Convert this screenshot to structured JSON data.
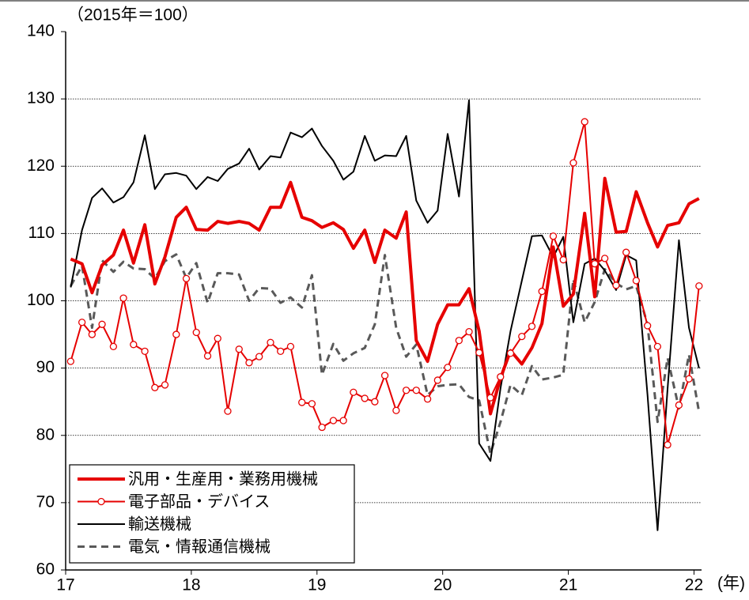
{
  "chart_data": {
    "type": "line",
    "y_unit_label": "（2015年＝100）",
    "x_unit_label": "(年)",
    "x": [
      17.04,
      17.13,
      17.21,
      17.29,
      17.38,
      17.46,
      17.54,
      17.63,
      17.71,
      17.79,
      17.88,
      17.96,
      18.04,
      18.13,
      18.21,
      18.29,
      18.38,
      18.46,
      18.54,
      18.63,
      18.71,
      18.79,
      18.88,
      18.96,
      19.04,
      19.13,
      19.21,
      19.29,
      19.38,
      19.46,
      19.54,
      19.63,
      19.71,
      19.79,
      19.88,
      19.96,
      20.04,
      20.13,
      20.21,
      20.29,
      20.38,
      20.46,
      20.54,
      20.63,
      20.71,
      20.79,
      20.88,
      20.96,
      21.04,
      21.13,
      21.21,
      21.29,
      21.38,
      21.46,
      21.54,
      21.63,
      21.71,
      21.79,
      21.88,
      21.96,
      22.04
    ],
    "series": [
      {
        "name": "汎用・生産用・業務用機械",
        "color": "#e60000",
        "width": 4,
        "dash": false,
        "markers": false,
        "values": [
          106.2,
          105.5,
          101.2,
          105.3,
          106.8,
          110.5,
          105.6,
          111.3,
          102.5,
          106.5,
          112.4,
          113.9,
          110.6,
          110.5,
          111.8,
          111.5,
          111.8,
          111.5,
          110.5,
          113.9,
          113.9,
          117.6,
          112.4,
          111.9,
          110.9,
          111.6,
          110.6,
          107.8,
          110.5,
          105.7,
          110.5,
          109.3,
          113.2,
          94.1,
          91.0,
          96.5,
          99.4,
          99.4,
          101.8,
          95.5,
          83.2,
          88.5,
          92.6,
          90.6,
          93.0,
          96.6,
          108.0,
          99.2,
          101.0,
          113.0,
          100.6,
          118.2,
          110.2,
          110.3,
          116.2,
          111.6,
          108.0,
          111.2,
          111.6,
          114.4,
          115.2
        ]
      },
      {
        "name": "電子部品・デバイス",
        "color": "#e60000",
        "width": 2,
        "dash": false,
        "markers": true,
        "values": [
          91,
          96.8,
          95,
          96.5,
          93.2,
          100.4,
          93.5,
          92.5,
          87.1,
          87.5,
          95,
          103.3,
          95.3,
          91.8,
          94.4,
          83.6,
          92.8,
          90.8,
          91.7,
          93.8,
          92.5,
          93.2,
          84.9,
          84.7,
          81.2,
          82.2,
          82.2,
          86.4,
          85.5,
          85,
          88.9,
          83.7,
          86.7,
          86.7,
          85.4,
          88.2,
          90.1,
          94.1,
          95.4,
          92.3,
          85.6,
          88.7,
          92.2,
          94.7,
          96.2,
          101.4,
          109.6,
          106.1,
          120.5,
          126.6,
          105.5,
          106.3,
          102.3,
          107.2,
          103,
          96.3,
          93.2,
          78.6,
          84.5,
          88.4,
          102.2
        ]
      },
      {
        "name": "輸送機械",
        "color": "#000000",
        "width": 2,
        "dash": false,
        "markers": false,
        "values": [
          102,
          110.5,
          115.3,
          116.7,
          114.6,
          115.4,
          117.6,
          124.6,
          116.6,
          118.8,
          119,
          118.6,
          116.6,
          118.4,
          117.8,
          119.6,
          120.4,
          122.6,
          119.5,
          121.5,
          121.3,
          125,
          124.3,
          125.6,
          123,
          120.8,
          118,
          119.2,
          124.5,
          120.8,
          121.6,
          121.5,
          124.5,
          114.9,
          111.6,
          113.4,
          124.8,
          115.5,
          129.8,
          78.8,
          76.2,
          87,
          95.5,
          103,
          109.6,
          109.7,
          106.5,
          109.5,
          96.8,
          105.5,
          106.3,
          104.5,
          101.6,
          106.8,
          106,
          86,
          65.9,
          87,
          109,
          96,
          90
        ]
      },
      {
        "name": "電気・情報通信機械",
        "color": "#595959",
        "width": 3,
        "dash": true,
        "markers": false,
        "values": [
          102.2,
          105.2,
          96,
          106,
          104.3,
          105.8,
          104.8,
          104.7,
          103.3,
          105.9,
          106.9,
          103.4,
          105.6,
          99.7,
          104.1,
          104.1,
          103.9,
          100,
          101.9,
          101.8,
          99.7,
          100.5,
          99,
          103.8,
          89,
          93.6,
          91.1,
          92.2,
          93,
          96.5,
          106.8,
          96,
          91.7,
          93.5,
          86,
          87.3,
          87.5,
          87.6,
          85.7,
          85.2,
          77.3,
          82,
          87.5,
          86,
          90.3,
          88.3,
          88.6,
          89,
          103.2,
          96.8,
          99.8,
          104.7,
          102.6,
          101.7,
          102.2,
          96.5,
          82,
          91.5,
          84,
          92,
          83.5
        ]
      }
    ],
    "xlim": [
      17,
      22.06
    ],
    "xticks": [
      17,
      18,
      19,
      20,
      21,
      22
    ],
    "ylim": [
      60,
      140
    ],
    "yticks": [
      60,
      70,
      80,
      90,
      100,
      110,
      120,
      130,
      140
    ],
    "grid": true,
    "legend": "lower left"
  }
}
